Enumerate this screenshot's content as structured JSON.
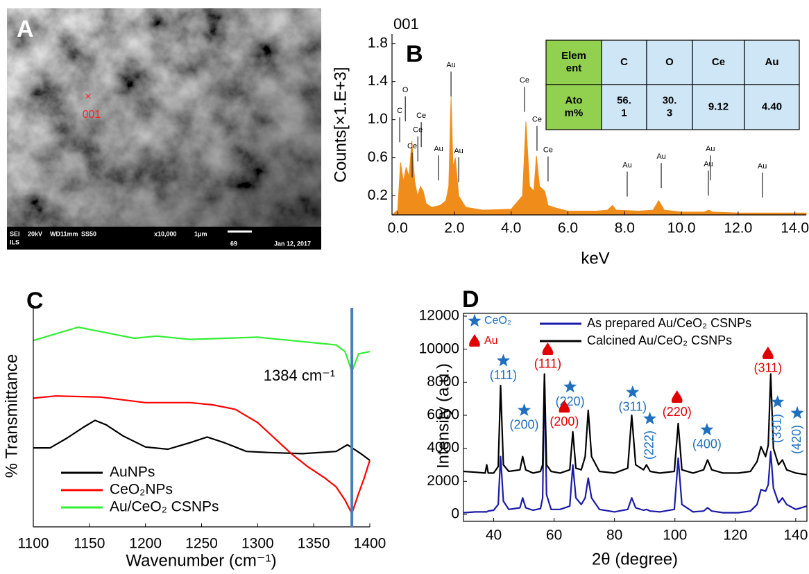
{
  "image_panel": {
    "label": "A",
    "marker": "×",
    "point_label": "001",
    "info_bar": [
      "SEI",
      "20kV",
      "WD11mm",
      "SS50",
      "x10,000",
      "1μm",
      "69",
      "Jan 12, 2017",
      "ILS"
    ]
  },
  "chart_data": [
    {
      "type": "area",
      "panel": "B",
      "title": "001",
      "x_label": "keV",
      "y_label": "Counts[×1.E+3]",
      "color": "#f08c1a",
      "xlim": [
        -0.2,
        14.4
      ],
      "ylim": [
        0,
        1.9
      ],
      "xticks": [
        {
          "value": 0,
          "label": "0.0"
        },
        {
          "value": 2,
          "label": "2.0"
        },
        {
          "value": 4,
          "label": "4.0"
        },
        {
          "value": 6,
          "label": "6.0"
        },
        {
          "value": 8,
          "label": "8.0"
        },
        {
          "value": 10,
          "label": "10.0"
        },
        {
          "value": 12,
          "label": "12.0"
        },
        {
          "value": 14,
          "label": "14.0"
        }
      ],
      "yticks": [
        0.2,
        0.6,
        {
          "value": 1,
          "label": "1.0"
        },
        1.4,
        1.8
      ],
      "x": [
        -0.2,
        0,
        0.1,
        0.2,
        0.3,
        0.4,
        0.5,
        0.6,
        0.7,
        0.8,
        0.9,
        1.0,
        1.2,
        1.5,
        1.7,
        1.8,
        1.88,
        1.95,
        2.03,
        2.15,
        2.4,
        3,
        4,
        4.4,
        4.52,
        4.65,
        4.8,
        4.89,
        5.0,
        5.18,
        5.3,
        5.6,
        6,
        7,
        7.4,
        7.57,
        7.7,
        8.5,
        9,
        9.2,
        9.4,
        10,
        10.8,
        10.97,
        11.1,
        12,
        13,
        14,
        14.4
      ],
      "values": [
        0,
        0.05,
        0.55,
        0.35,
        0.5,
        0.4,
        0.78,
        0.35,
        0.2,
        0.3,
        0.25,
        0.12,
        0.08,
        0.1,
        0.15,
        0.3,
        1.24,
        0.5,
        0.6,
        0.2,
        0.08,
        0.05,
        0.06,
        0.2,
        0.98,
        0.3,
        0.25,
        0.62,
        0.3,
        0.25,
        0.1,
        0.07,
        0.04,
        0.04,
        0.05,
        0.1,
        0.05,
        0.04,
        0.05,
        0.15,
        0.05,
        0.03,
        0.03,
        0.05,
        0.03,
        0.02,
        0.02,
        0.02,
        0.02
      ],
      "peak_labels": [
        {
          "text": "O",
          "x": 0.27,
          "y": 1.31
        },
        {
          "text": "C",
          "x": 0.07,
          "y": 1.09
        },
        {
          "text": "Ce",
          "x": 0.83,
          "y": 1.04
        },
        {
          "text": "Ce",
          "x": 0.71,
          "y": 0.89
        },
        {
          "text": "Ce",
          "x": 0.51,
          "y": 0.72
        },
        {
          "text": "Au",
          "x": 1.44,
          "y": 0.69
        },
        {
          "text": "Au",
          "x": 2.15,
          "y": 0.67
        },
        {
          "text": "Au",
          "x": 1.88,
          "y": 1.57
        },
        {
          "text": "Ce",
          "x": 4.47,
          "y": 1.41
        },
        {
          "text": "Ce",
          "x": 4.91,
          "y": 1.0
        },
        {
          "text": "Ce",
          "x": 5.3,
          "y": 0.68
        },
        {
          "text": "Au",
          "x": 8.09,
          "y": 0.52
        },
        {
          "text": "Au",
          "x": 9.29,
          "y": 0.61
        },
        {
          "text": "Au",
          "x": 11.02,
          "y": 0.69
        },
        {
          "text": "Au",
          "x": 10.95,
          "y": 0.53
        },
        {
          "text": "Au",
          "x": 12.85,
          "y": 0.51
        }
      ],
      "table": {
        "header": [
          [
            "Elem",
            "ent"
          ],
          [
            "C"
          ],
          [
            "O"
          ],
          [
            "Ce"
          ],
          [
            "Au"
          ]
        ],
        "rows": [
          [
            [
              "Ato",
              "m%"
            ],
            [
              "56.",
              "1"
            ],
            [
              "30.",
              "3"
            ],
            [
              "9.12"
            ],
            [
              "4.40"
            ]
          ]
        ]
      }
    },
    {
      "type": "line",
      "panel": "C",
      "x_label": "Wavenumber (cm⁻¹)",
      "y_label": "% Transmittance",
      "xlim": [
        1100,
        1400
      ],
      "ylim": [
        0,
        100
      ],
      "xticks": [
        1100,
        1150,
        1200,
        1250,
        1300,
        1350,
        1400
      ],
      "series": [
        {
          "name": "AuNPs",
          "color": "#000000",
          "x": [
            1100,
            1115,
            1130,
            1145,
            1155,
            1165,
            1180,
            1200,
            1220,
            1240,
            1255,
            1270,
            1290,
            1310,
            1340,
            1370,
            1380,
            1386,
            1392,
            1400
          ],
          "values": [
            35.6,
            35.6,
            40,
            45,
            48,
            46,
            41,
            36,
            35,
            38,
            40.5,
            38,
            34,
            33.5,
            33,
            34,
            37,
            35,
            33,
            30
          ]
        },
        {
          "name": "CeO₂NPs",
          "color": "#ff0000",
          "x": [
            1100,
            1120,
            1160,
            1200,
            1240,
            1260,
            1280,
            1300,
            1315,
            1330,
            1345,
            1360,
            1370,
            1378,
            1384,
            1390,
            1395,
            1400
          ],
          "values": [
            58,
            59,
            58.5,
            56,
            56,
            55,
            53,
            47,
            40,
            33,
            27,
            22,
            18,
            12,
            6,
            15,
            22,
            30
          ]
        },
        {
          "name": "Au/CeO₂ CSNPs",
          "color": "#33ee33",
          "x": [
            1100,
            1120,
            1140,
            1150,
            1170,
            1190,
            1210,
            1240,
            1270,
            1300,
            1330,
            1350,
            1370,
            1378,
            1384,
            1390,
            1400
          ],
          "values": [
            84,
            87,
            90,
            89,
            87,
            85,
            86,
            84.5,
            85,
            85.5,
            84,
            83,
            82,
            79,
            70,
            78,
            79
          ]
        }
      ],
      "annotations": [
        {
          "text": "1384 cm⁻¹",
          "x": 1384,
          "color": "#4a7ebb"
        }
      ]
    },
    {
      "type": "line",
      "panel": "D",
      "x_label": "2θ (degree)",
      "y_label": "Intensity (a.u.)",
      "xlim": [
        30,
        143.7
      ],
      "ylim": [
        -420,
        12170
      ],
      "xticks": [
        40,
        60,
        80,
        100,
        120,
        140
      ],
      "yticks": [
        0,
        2000,
        4000,
        6000,
        8000,
        10000,
        12000
      ],
      "series": [
        {
          "name": "As prepared Au/CeO₂ CSNPs",
          "color": "#1a1aa8",
          "x": [
            30,
            34,
            37.2,
            37.7,
            38.2,
            40,
            41.5,
            42.3,
            43.2,
            45,
            48.7,
            49.6,
            50.6,
            53,
            55.5,
            56.2,
            56.8,
            57.5,
            59,
            62,
            65.2,
            66.2,
            67.2,
            69,
            70.3,
            71.3,
            72.4,
            75,
            80,
            84.4,
            85.7,
            87,
            89.6,
            90.6,
            91.8,
            95,
            99.8,
            101.1,
            102.3,
            106,
            109.5,
            110.8,
            112.2,
            116,
            121,
            125,
            127.2,
            128.5,
            130,
            130.9,
            131.7,
            132.6,
            134.3,
            135.6,
            137,
            140,
            143.7
          ],
          "values": [
            100,
            150,
            150,
            150,
            200,
            250,
            600,
            3500,
            800,
            300,
            400,
            1000,
            400,
            250,
            350,
            1000,
            8400,
            1200,
            300,
            300,
            500,
            3000,
            1000,
            600,
            1000,
            2200,
            1000,
            300,
            150,
            300,
            1000,
            400,
            250,
            300,
            200,
            150,
            300,
            3400,
            600,
            150,
            200,
            400,
            200,
            100,
            100,
            200,
            600,
            1500,
            1400,
            1800,
            3800,
            1600,
            700,
            1000,
            600,
            300,
            500
          ]
        },
        {
          "name": "Calcined  Au/CeO₂ CSNPs",
          "color": "#000000",
          "x": [
            30,
            34,
            37.2,
            37.7,
            38.2,
            40,
            41.5,
            42.3,
            43.2,
            45,
            48.7,
            49.6,
            50.6,
            53,
            55.5,
            56.2,
            56.8,
            57.5,
            59,
            62,
            65.2,
            66.2,
            67.2,
            69,
            70.3,
            71.3,
            72.4,
            75,
            80,
            84.4,
            85.7,
            87,
            89.6,
            90.6,
            91.8,
            95,
            99.8,
            101.1,
            102.3,
            106,
            109.5,
            110.8,
            112.2,
            116,
            121,
            125,
            127.2,
            128.5,
            130,
            130.9,
            131.7,
            132.6,
            134.3,
            135.6,
            137,
            140,
            143.7
          ],
          "values": [
            2600,
            2550,
            2500,
            3000,
            2500,
            2500,
            2900,
            7800,
            3000,
            2600,
            2700,
            3500,
            2700,
            2500,
            2600,
            3000,
            8500,
            3000,
            2600,
            2500,
            2700,
            5000,
            2800,
            2700,
            3500,
            6300,
            3500,
            2600,
            2500,
            2800,
            6000,
            3000,
            2700,
            3000,
            2600,
            2500,
            2600,
            5500,
            2700,
            2500,
            2700,
            3300,
            2700,
            2500,
            2500,
            2600,
            3200,
            4100,
            3500,
            4200,
            8500,
            4000,
            3000,
            3300,
            2700,
            2500,
            2400
          ]
        }
      ],
      "peak_groups": [
        {
          "name": "CeO₂",
          "color": "#1f6fbf",
          "marker": "star",
          "peaks": [
            {
              "label": "(111)",
              "x": 43.2,
              "y": 9300
            },
            {
              "label": "(200)",
              "x": 50.1,
              "y": 6300
            },
            {
              "label": "(220)",
              "x": 65.3,
              "y": 7720
            },
            {
              "label": "(311)",
              "x": 86,
              "y": 7390
            },
            {
              "label": "(222)",
              "x": 91.7,
              "y": 5790,
              "rotated": true
            },
            {
              "label": "(400)",
              "x": 110.6,
              "y": 5120
            },
            {
              "label": "(331)",
              "x": 134,
              "y": 6800,
              "rotated": true
            },
            {
              "label": "(420)",
              "x": 140.5,
              "y": 6130,
              "rotated": true
            }
          ]
        },
        {
          "name": "Au",
          "color": "#e00000",
          "marker": "drop",
          "peaks": [
            {
              "label": "(111)",
              "x": 57.9,
              "y": 9990
            },
            {
              "label": "(200)",
              "x": 63.4,
              "y": 6500
            },
            {
              "label": "(220)",
              "x": 100.7,
              "y": 7090
            },
            {
              "label": "(311)",
              "x": 130.8,
              "y": 9740
            }
          ]
        }
      ]
    }
  ]
}
